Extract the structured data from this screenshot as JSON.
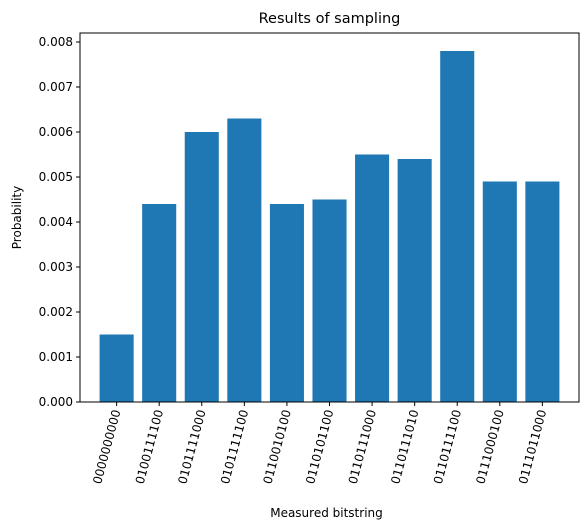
{
  "chart_data": {
    "type": "bar",
    "title": "Results of sampling",
    "xlabel": "Measured bitstring",
    "ylabel": "Probability",
    "categories": [
      "0000000000",
      "0100111100",
      "0101111000",
      "0101111100",
      "0110010100",
      "0110101100",
      "0110111000",
      "0110111010",
      "0110111100",
      "0111000100",
      "0111011000"
    ],
    "values": [
      0.0015,
      0.0044,
      0.006,
      0.0063,
      0.0044,
      0.0045,
      0.0055,
      0.0054,
      0.0078,
      0.0049,
      0.0049
    ],
    "ylim": [
      0,
      0.0082
    ],
    "yticks": [
      "0.000",
      "0.001",
      "0.002",
      "0.003",
      "0.004",
      "0.005",
      "0.006",
      "0.007",
      "0.008"
    ],
    "bar_color": "#1f77b4",
    "grid": false,
    "legend": "none"
  }
}
